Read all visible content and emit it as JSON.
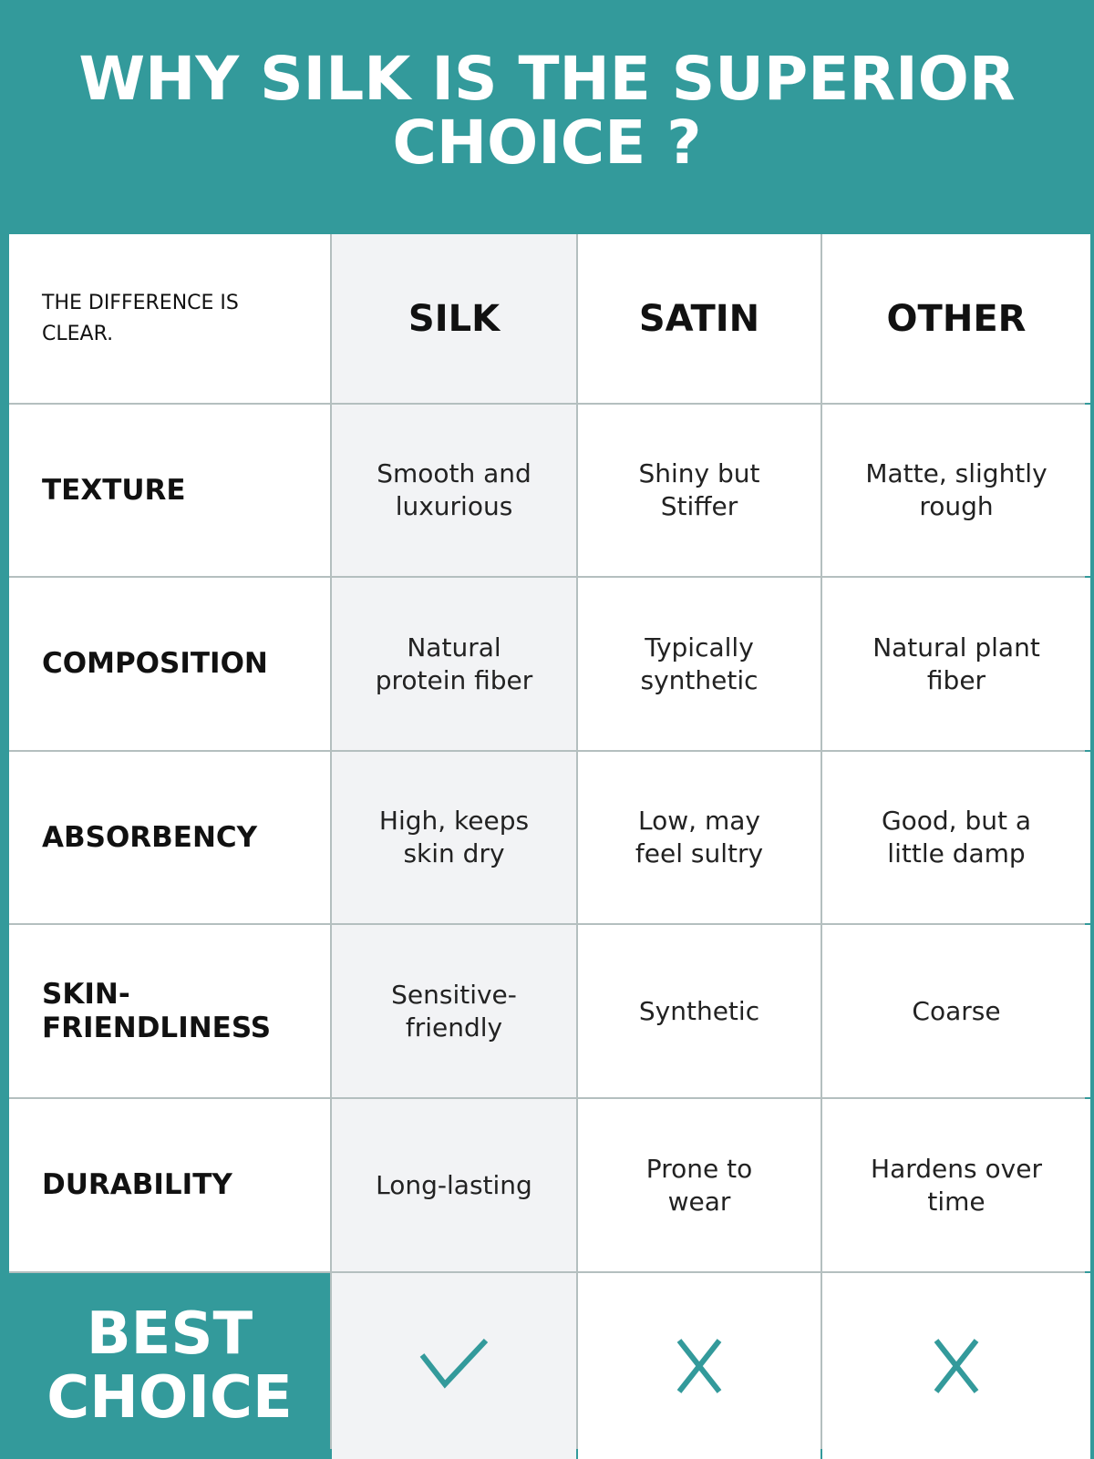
{
  "title": "WHY SILK IS THE SUPERIOR CHOICE ?",
  "intro": "THE DIFFERENCE IS CLEAR.",
  "columns": [
    "SILK",
    "SATIN",
    "OTHER"
  ],
  "rows": [
    {
      "label": "TEXTURE",
      "values": [
        "Smooth and luxurious",
        "Shiny but Stiffer",
        "Matte, slightly rough"
      ]
    },
    {
      "label": "COMPOSITION",
      "values": [
        "Natural protein fiber",
        "Typically synthetic",
        "Natural plant fiber"
      ]
    },
    {
      "label": "ABSORBENCY",
      "values": [
        "High, keeps skin dry",
        "Low, may feel sultry",
        "Good, but a little damp"
      ]
    },
    {
      "label": "SKIN-FRIENDLINESS",
      "values": [
        "Sensitive-friendly",
        "Synthetic",
        "Coarse"
      ]
    },
    {
      "label": "DURABILITY",
      "values": [
        "Long-lasting",
        "Prone to wear",
        "Hardens over time"
      ]
    }
  ],
  "best_choice": {
    "label": "BEST CHOICE",
    "marks": [
      "check-icon",
      "x-icon",
      "x-icon"
    ]
  },
  "colors": {
    "accent": "#339a9b",
    "silk_column": "#f2f3f5",
    "border": "#b4bfbf"
  }
}
